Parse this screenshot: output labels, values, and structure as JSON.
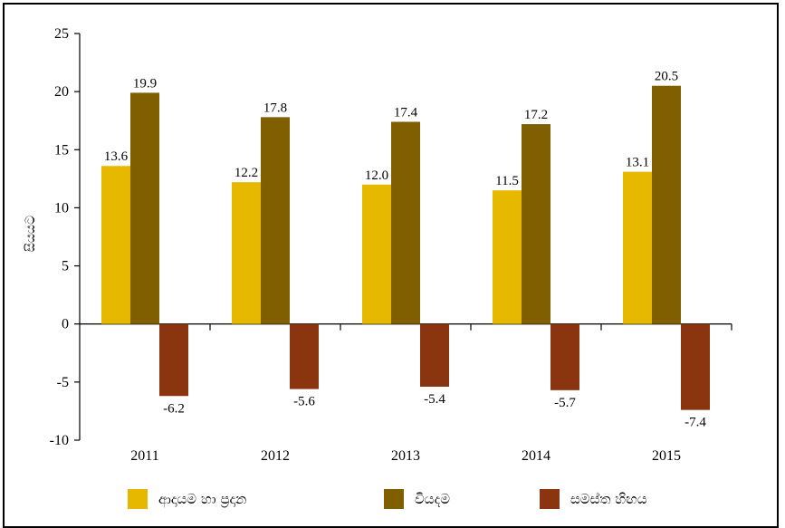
{
  "chart_data": {
    "type": "bar",
    "categories": [
      "2011",
      "2012",
      "2013",
      "2014",
      "2015"
    ],
    "series": [
      {
        "name": "ආදායම හා ප්‍රදාන",
        "color": "#E6B800",
        "values": [
          13.6,
          12.2,
          12.0,
          11.5,
          13.1
        ],
        "labels": [
          "13.6",
          "12.2",
          "12.0",
          "11.5",
          "13.1"
        ]
      },
      {
        "name": "වියදම",
        "color": "#7F5F00",
        "values": [
          19.9,
          17.8,
          17.4,
          17.2,
          20.5
        ],
        "labels": [
          "19.9",
          "17.8",
          "17.4",
          "17.2",
          "20.5"
        ]
      },
      {
        "name": "සමස්ත හිඟය",
        "color": "#8B3410",
        "values": [
          -6.2,
          -5.6,
          -5.4,
          -5.7,
          -7.4
        ],
        "labels": [
          "-6.2",
          "-5.6",
          "-5.4",
          "-5.7",
          "-7.4"
        ]
      }
    ],
    "ylabel": "සියයට",
    "ylim": [
      -10,
      25
    ],
    "yticks": [
      25,
      20,
      15,
      10,
      5,
      0,
      -5,
      -10
    ],
    "ytick_labels": [
      "25",
      "20",
      "15",
      "10",
      "5",
      "0",
      "-5",
      "-10"
    ],
    "grid": false,
    "legend_position": "bottom"
  }
}
